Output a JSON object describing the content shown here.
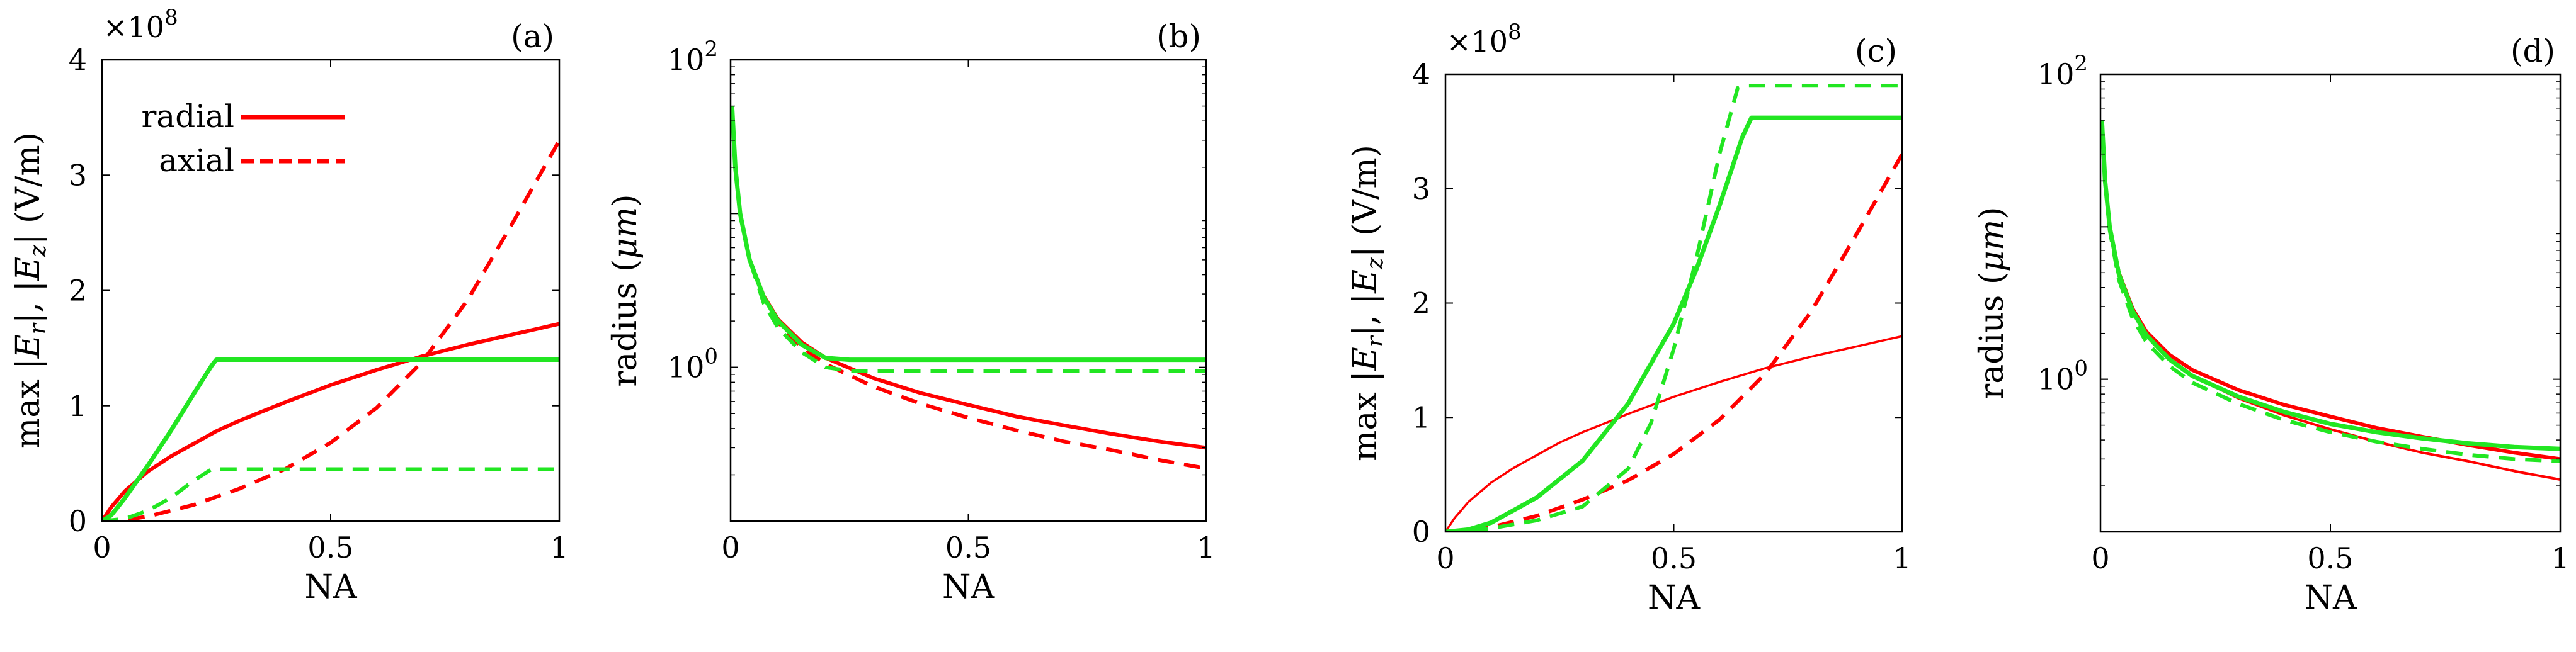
{
  "figure": {
    "legend": [
      {
        "label": "radial",
        "color": "#ff0000",
        "dash": "solid"
      },
      {
        "label": "axial",
        "color": "#ff0000",
        "dash": "dashed"
      }
    ]
  },
  "colors": {
    "red": "#ff0000",
    "green": "#22e622"
  },
  "chart_data": [
    {
      "type": "line",
      "panel": "(a)",
      "xlabel": "NA",
      "ylabel": "max |E_r|, |E_z| (V/m)",
      "yscale": "linear",
      "multiplier": "×10^8",
      "xlim": [
        0,
        1
      ],
      "ylim": [
        0,
        4
      ],
      "xticks": [
        0,
        0.5,
        1
      ],
      "xtick_labels": [
        "0",
        "0.5",
        "1"
      ],
      "yticks": [
        0,
        1,
        2,
        3,
        4
      ],
      "ytick_labels": [
        "0",
        "1",
        "2",
        "3",
        "4"
      ],
      "series": [
        {
          "color": "red",
          "dash": "solid",
          "width": 6,
          "x": [
            0,
            0.02,
            0.05,
            0.1,
            0.15,
            0.2,
            0.25,
            0.3,
            0.4,
            0.5,
            0.6,
            0.7,
            0.8,
            0.9,
            1.0
          ],
          "y": [
            0,
            0.12,
            0.26,
            0.43,
            0.56,
            0.67,
            0.78,
            0.87,
            1.03,
            1.18,
            1.31,
            1.43,
            1.53,
            1.62,
            1.71
          ]
        },
        {
          "color": "red",
          "dash": "dashed",
          "width": 6,
          "x": [
            0,
            0.05,
            0.1,
            0.2,
            0.3,
            0.4,
            0.5,
            0.6,
            0.7,
            0.8,
            0.9,
            0.95,
            1.0
          ],
          "y": [
            0,
            0.01,
            0.04,
            0.14,
            0.28,
            0.45,
            0.68,
            0.98,
            1.38,
            1.92,
            2.6,
            2.95,
            3.3
          ]
        },
        {
          "color": "green",
          "dash": "solid",
          "width": 7,
          "x": [
            0,
            0.02,
            0.05,
            0.1,
            0.15,
            0.2,
            0.24,
            0.25,
            0.5,
            0.75,
            1.0
          ],
          "y": [
            0,
            0.05,
            0.2,
            0.48,
            0.78,
            1.1,
            1.35,
            1.4,
            1.4,
            1.4,
            1.4
          ]
        },
        {
          "color": "green",
          "dash": "dashed",
          "width": 6,
          "x": [
            0,
            0.05,
            0.1,
            0.15,
            0.2,
            0.24,
            0.25,
            0.5,
            0.75,
            1.0
          ],
          "y": [
            0,
            0.02,
            0.09,
            0.2,
            0.35,
            0.45,
            0.45,
            0.45,
            0.45,
            0.45
          ]
        }
      ]
    },
    {
      "type": "line",
      "panel": "(b)",
      "xlabel": "NA",
      "ylabel": "radius (μm)",
      "yscale": "log",
      "xlim": [
        0,
        1
      ],
      "ylim": [
        0.1,
        100
      ],
      "xticks": [
        0,
        0.5,
        1
      ],
      "xtick_labels": [
        "0",
        "0.5",
        "1"
      ],
      "yticks": [
        1,
        100
      ],
      "ytick_labels": [
        "10^0",
        "10^2"
      ],
      "series": [
        {
          "color": "red",
          "dash": "solid",
          "width": 6,
          "x": [
            0.003,
            0.01,
            0.02,
            0.04,
            0.07,
            0.1,
            0.15,
            0.2,
            0.3,
            0.4,
            0.5,
            0.6,
            0.7,
            0.8,
            0.9,
            1.0
          ],
          "y": [
            50,
            20,
            10,
            5,
            2.9,
            2.05,
            1.45,
            1.15,
            0.85,
            0.68,
            0.57,
            0.48,
            0.42,
            0.37,
            0.33,
            0.3
          ]
        },
        {
          "color": "red",
          "dash": "dashed",
          "width": 6,
          "x": [
            0.003,
            0.01,
            0.02,
            0.04,
            0.07,
            0.1,
            0.15,
            0.2,
            0.3,
            0.4,
            0.5,
            0.6,
            0.7,
            0.8,
            0.9,
            1.0
          ],
          "y": [
            50,
            20,
            10,
            5,
            2.8,
            1.95,
            1.35,
            1.05,
            0.75,
            0.58,
            0.47,
            0.39,
            0.33,
            0.29,
            0.25,
            0.22
          ]
        },
        {
          "color": "green",
          "dash": "solid",
          "width": 7,
          "x": [
            0.003,
            0.01,
            0.02,
            0.04,
            0.07,
            0.1,
            0.15,
            0.2,
            0.25,
            0.3,
            0.5,
            0.75,
            1.0
          ],
          "y": [
            50,
            20,
            10,
            5,
            2.85,
            2.0,
            1.4,
            1.15,
            1.12,
            1.12,
            1.12,
            1.12,
            1.12
          ]
        },
        {
          "color": "green",
          "dash": "dashed",
          "width": 6,
          "x": [
            0.003,
            0.01,
            0.02,
            0.04,
            0.07,
            0.1,
            0.15,
            0.2,
            0.25,
            0.3,
            0.5,
            0.75,
            1.0
          ],
          "y": [
            50,
            20,
            10,
            5,
            2.6,
            1.8,
            1.25,
            1.0,
            0.95,
            0.95,
            0.95,
            0.95,
            0.95
          ]
        }
      ]
    },
    {
      "type": "line",
      "panel": "(c)",
      "xlabel": "NA",
      "ylabel": "max |E_r|, |E_z| (V/m)",
      "yscale": "linear",
      "multiplier": "×10^8",
      "xlim": [
        0,
        1
      ],
      "ylim": [
        0,
        4
      ],
      "xticks": [
        0,
        0.5,
        1
      ],
      "xtick_labels": [
        "0",
        "0.5",
        "1"
      ],
      "yticks": [
        0,
        1,
        2,
        3,
        4
      ],
      "ytick_labels": [
        "0",
        "1",
        "2",
        "3",
        "4"
      ],
      "series": [
        {
          "color": "red",
          "dash": "solid",
          "width": 3.5,
          "x": [
            0,
            0.02,
            0.05,
            0.1,
            0.15,
            0.2,
            0.25,
            0.3,
            0.4,
            0.5,
            0.6,
            0.7,
            0.8,
            0.9,
            1.0
          ],
          "y": [
            0,
            0.12,
            0.26,
            0.43,
            0.56,
            0.67,
            0.78,
            0.87,
            1.03,
            1.18,
            1.31,
            1.43,
            1.53,
            1.62,
            1.71
          ]
        },
        {
          "color": "red",
          "dash": "dashed",
          "width": 6,
          "x": [
            0,
            0.05,
            0.1,
            0.2,
            0.3,
            0.4,
            0.5,
            0.6,
            0.7,
            0.8,
            0.9,
            0.95,
            1.0
          ],
          "y": [
            0,
            0.01,
            0.04,
            0.14,
            0.28,
            0.45,
            0.68,
            0.98,
            1.38,
            1.92,
            2.6,
            2.95,
            3.3
          ]
        },
        {
          "color": "green",
          "dash": "solid",
          "width": 7,
          "x": [
            0,
            0.05,
            0.1,
            0.2,
            0.3,
            0.4,
            0.5,
            0.55,
            0.6,
            0.65,
            0.67,
            0.75,
            1.0
          ],
          "y": [
            0,
            0.02,
            0.08,
            0.3,
            0.62,
            1.12,
            1.82,
            2.3,
            2.85,
            3.45,
            3.62,
            3.62,
            3.62
          ]
        },
        {
          "color": "green",
          "dash": "dashed",
          "width": 6,
          "x": [
            0,
            0.05,
            0.1,
            0.2,
            0.3,
            0.4,
            0.45,
            0.5,
            0.55,
            0.6,
            0.64,
            0.66,
            0.75,
            1.0
          ],
          "y": [
            0,
            0.01,
            0.03,
            0.1,
            0.22,
            0.55,
            0.95,
            1.6,
            2.4,
            3.3,
            3.88,
            3.9,
            3.9,
            3.9
          ]
        }
      ]
    },
    {
      "type": "line",
      "panel": "(d)",
      "xlabel": "NA",
      "ylabel": "radius (μm)",
      "yscale": "log",
      "xlim": [
        0,
        1
      ],
      "ylim": [
        0.1,
        100
      ],
      "xticks": [
        0,
        0.5,
        1
      ],
      "xtick_labels": [
        "0",
        "0.5",
        "1"
      ],
      "yticks": [
        1,
        100
      ],
      "ytick_labels": [
        "10^0",
        "10^2"
      ],
      "series": [
        {
          "color": "red",
          "dash": "solid",
          "width": 6,
          "x": [
            0.003,
            0.01,
            0.02,
            0.04,
            0.07,
            0.1,
            0.15,
            0.2,
            0.3,
            0.4,
            0.5,
            0.6,
            0.7,
            0.8,
            0.9,
            1.0
          ],
          "y": [
            50,
            20,
            10,
            5,
            2.9,
            2.05,
            1.45,
            1.15,
            0.85,
            0.68,
            0.57,
            0.48,
            0.42,
            0.37,
            0.33,
            0.3
          ]
        },
        {
          "color": "red",
          "dash": "solid",
          "width": 4,
          "x": [
            0.003,
            0.01,
            0.02,
            0.04,
            0.07,
            0.1,
            0.15,
            0.2,
            0.3,
            0.4,
            0.5,
            0.6,
            0.7,
            0.8,
            0.9,
            1.0
          ],
          "y": [
            50,
            20,
            10,
            5,
            2.8,
            1.95,
            1.35,
            1.05,
            0.75,
            0.58,
            0.47,
            0.39,
            0.33,
            0.29,
            0.25,
            0.22
          ]
        },
        {
          "color": "green",
          "dash": "solid",
          "width": 7,
          "x": [
            0.003,
            0.01,
            0.02,
            0.04,
            0.07,
            0.1,
            0.15,
            0.2,
            0.3,
            0.4,
            0.5,
            0.6,
            0.7,
            0.8,
            0.9,
            1.0
          ],
          "y": [
            50,
            20,
            10,
            4.9,
            2.8,
            1.95,
            1.35,
            1.05,
            0.77,
            0.61,
            0.51,
            0.45,
            0.41,
            0.38,
            0.36,
            0.35
          ]
        },
        {
          "color": "green",
          "dash": "dashed",
          "width": 6,
          "x": [
            0.003,
            0.01,
            0.02,
            0.04,
            0.07,
            0.1,
            0.15,
            0.2,
            0.3,
            0.4,
            0.5,
            0.6,
            0.7,
            0.8,
            0.9,
            1.0
          ],
          "y": [
            50,
            20,
            9.5,
            4.5,
            2.5,
            1.75,
            1.22,
            0.95,
            0.69,
            0.54,
            0.45,
            0.39,
            0.35,
            0.32,
            0.3,
            0.29
          ]
        }
      ]
    }
  ]
}
